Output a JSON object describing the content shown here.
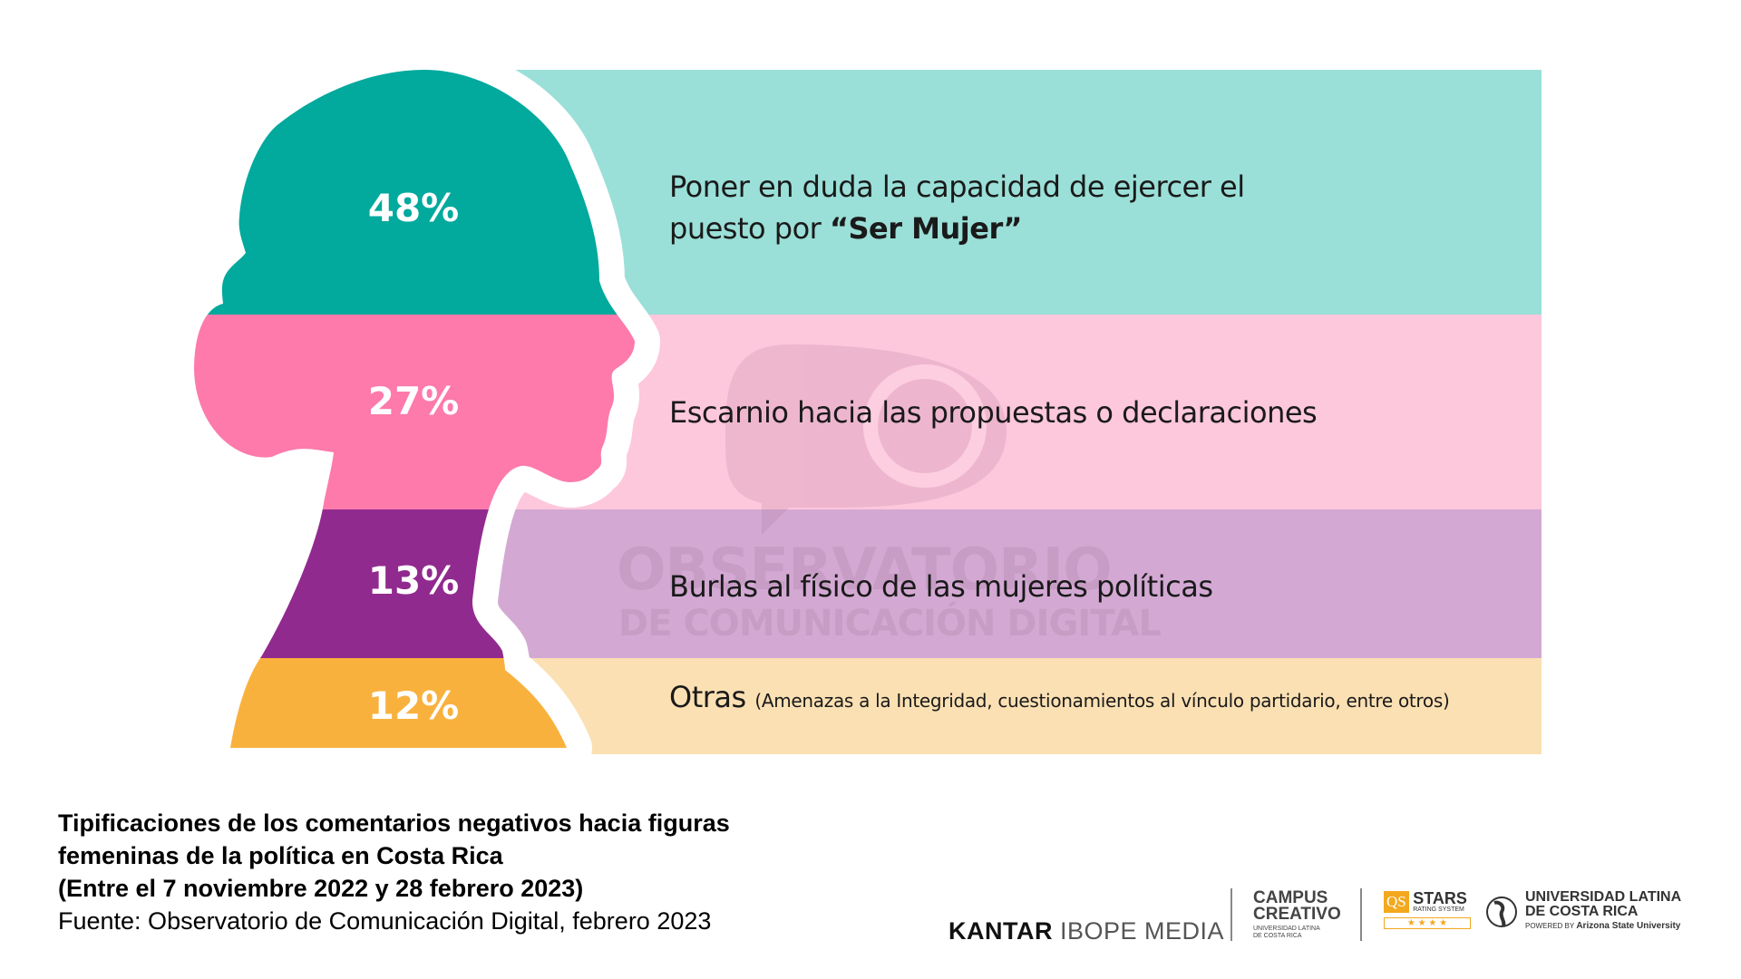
{
  "colors": {
    "teal": "#02a99d",
    "teal_light": "#9adfd8",
    "pink": "#fd7aab",
    "pink_light": "#fdc7dc",
    "purple": "#912a8e",
    "purple_light": "#d3a9d3",
    "orange": "#f9b13e",
    "orange_light": "#fbe0b3"
  },
  "items": [
    {
      "percent": "48%",
      "text_line1": "Poner en duda la capacidad de ejercer el",
      "text_line2_plain": "puesto por ",
      "text_line2_bold": "“Ser Mujer”"
    },
    {
      "percent": "27%",
      "text": "Escarnio hacia las propuestas o declaraciones"
    },
    {
      "percent": "13%",
      "text": "Burlas al físico de las mujeres políticas"
    },
    {
      "percent": "12%",
      "text": "Otras",
      "note": "(Amenazas a la Integridad, cuestionamientos al vínculo partidario, entre otros)"
    }
  ],
  "watermark": {
    "line1": "OBSERVATORIO",
    "line2": "DE COMUNICACIÓN DIGITAL",
    "icon": "speech-bubble-icon"
  },
  "caption": {
    "line1": "Tipificaciones de los comentarios negativos hacia figuras",
    "line2": "femeninas de la política en Costa Rica",
    "line3": "(Entre el 7 noviembre 2022 y 28 febrero 2023)",
    "source": "Fuente: Observatorio de Comunicación Digital, febrero 2023"
  },
  "logos": {
    "kantar_bold": "KANTAR",
    "kantar_light": "IBOPE MEDIA",
    "campus_line1": "CAMPUS",
    "campus_line2": "CREATIVO",
    "campus_sub1": "UNIVERSIDAD LATINA",
    "campus_sub2": "DE COSTA RICA",
    "qs_mark": "QS",
    "qs_stars": "STARS",
    "qs_sub": "RATING SYSTEM",
    "qs_rating": "★ ★ ★ ★",
    "ul_line1": "UNIVERSIDAD LATINA",
    "ul_line2": "DE COSTA RICA",
    "ul_powered": "POWERED BY",
    "ul_asu": "Arizona State University"
  }
}
